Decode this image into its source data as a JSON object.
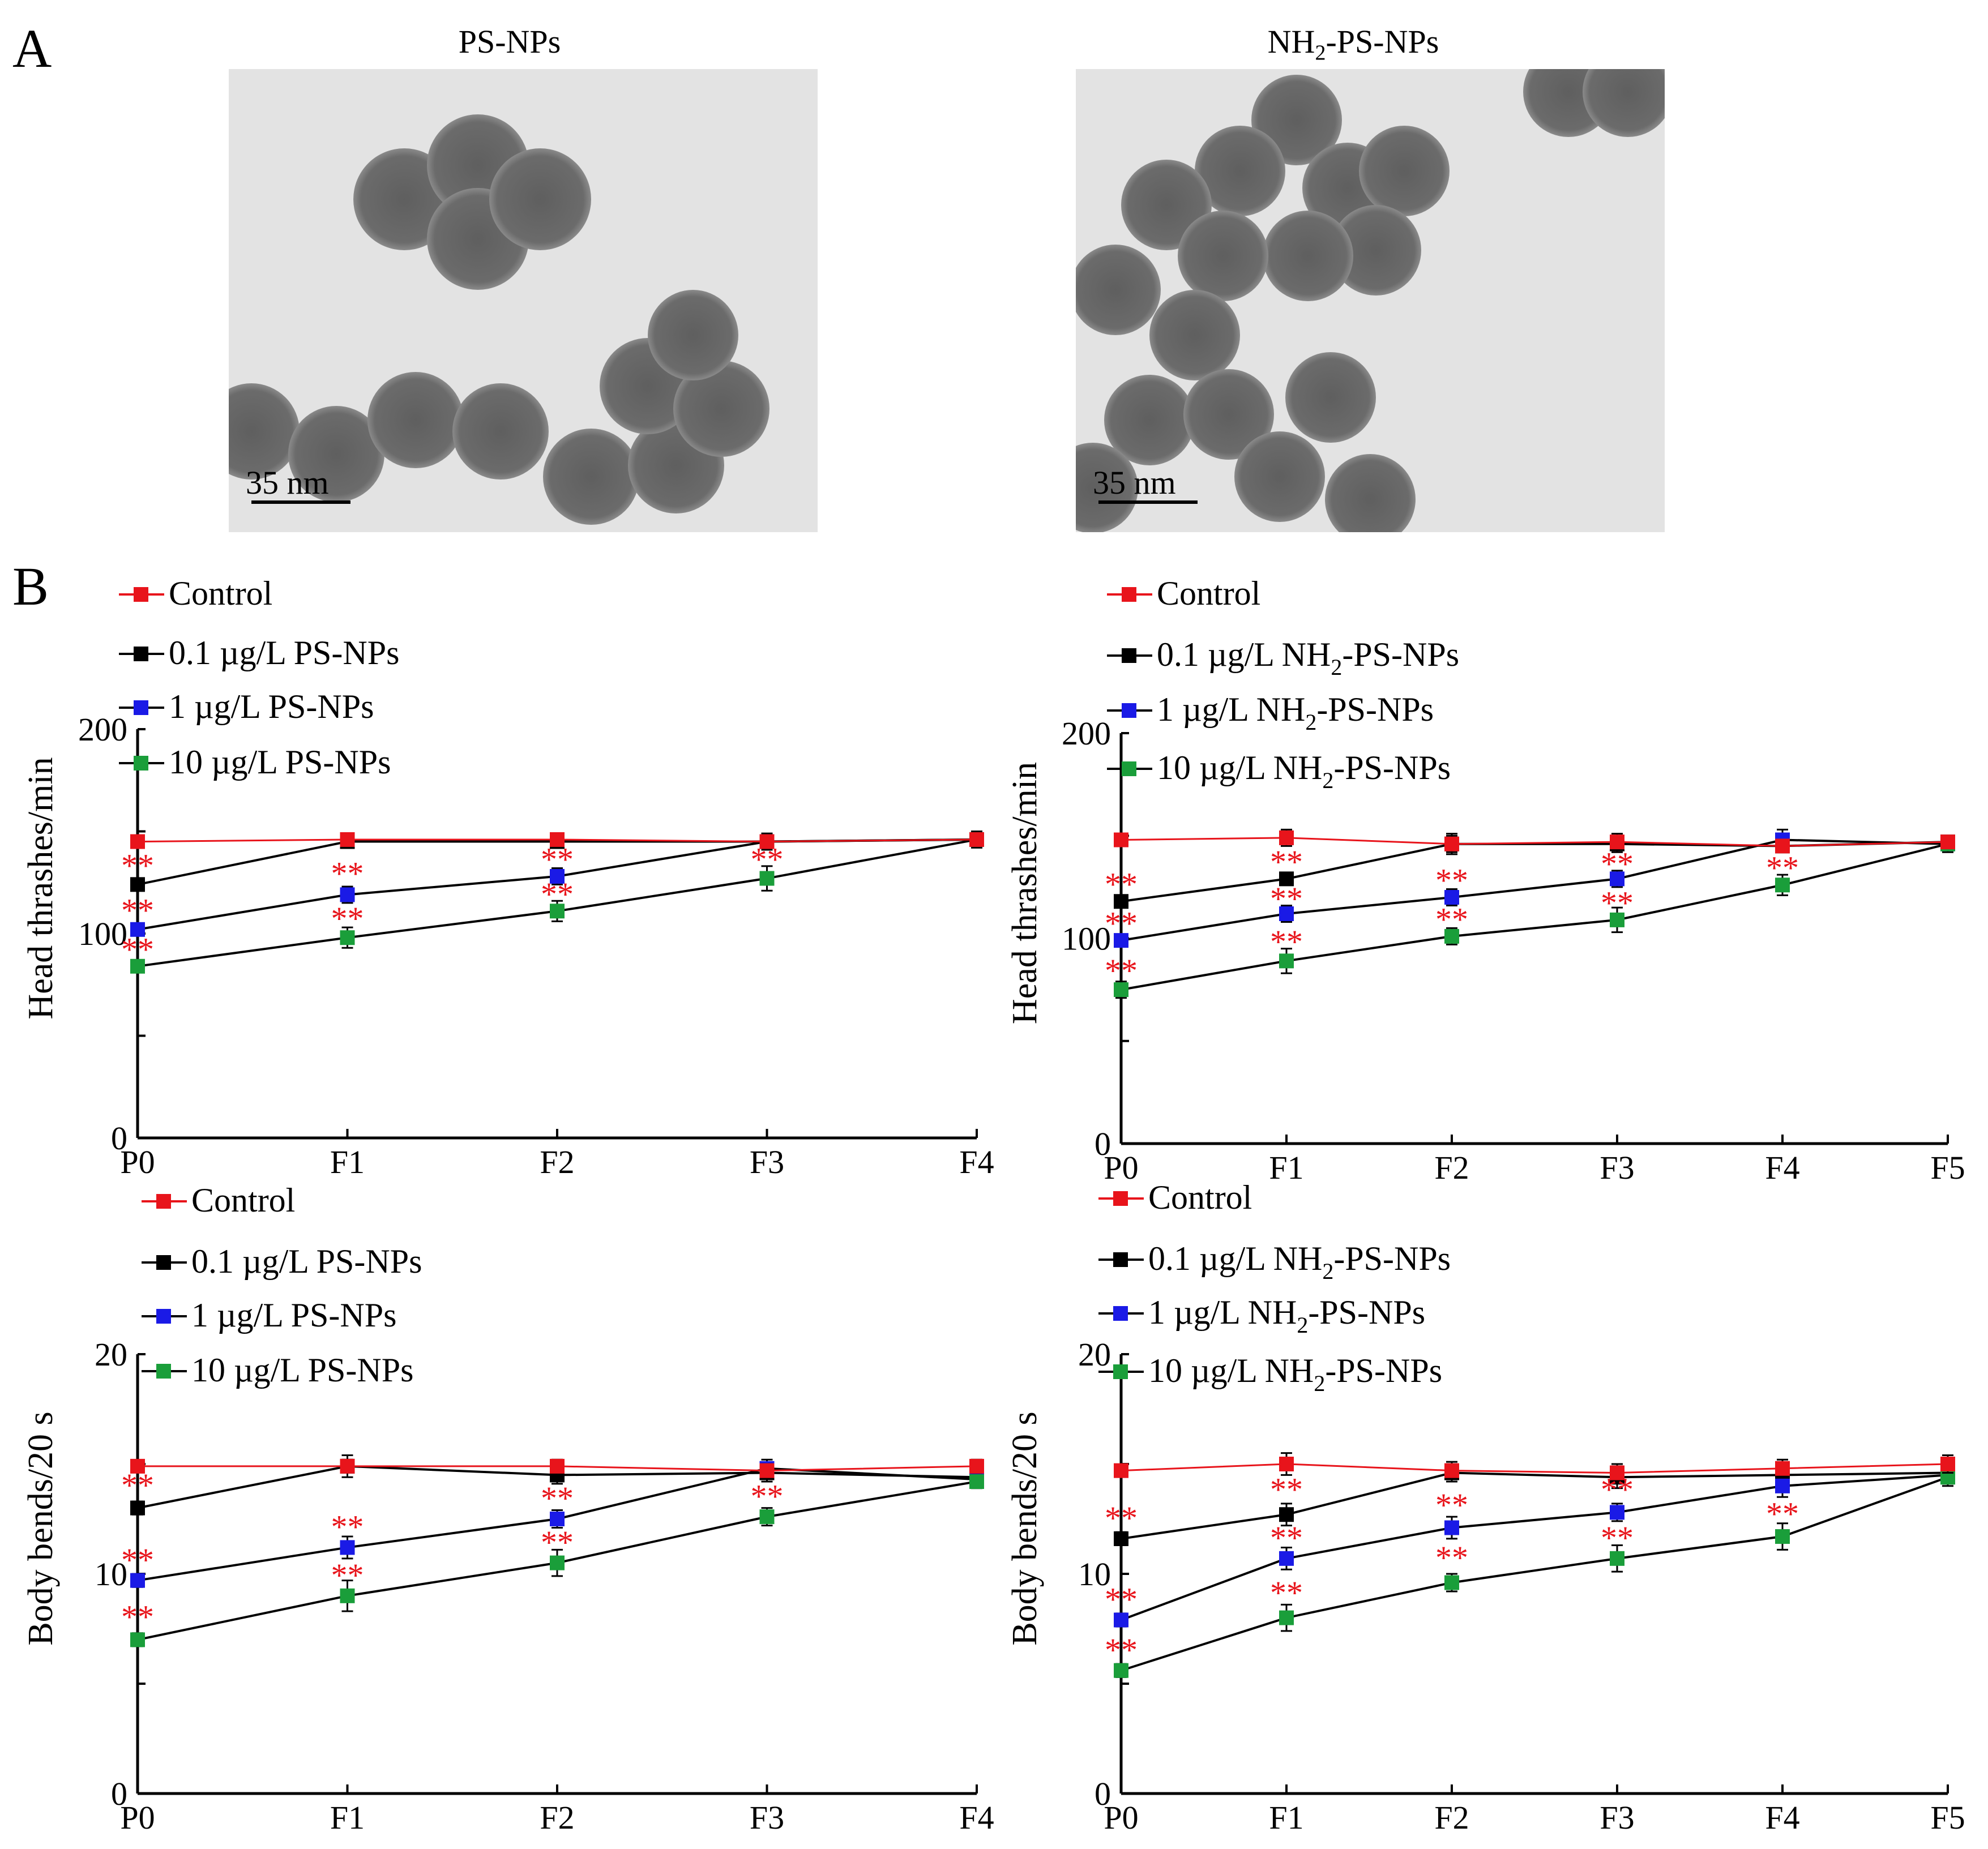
{
  "panel_labels": {
    "a": "A",
    "b": "B"
  },
  "tem": [
    {
      "title_main": "PS-NPs",
      "title_sub": "",
      "title_tail": "",
      "scalebar": "35 nm"
    },
    {
      "title_main": "NH",
      "title_sub": "2",
      "title_tail": "-PS-NPs",
      "scalebar": "35 nm"
    }
  ],
  "colors": {
    "control": "#e8141b",
    "low": "#000000",
    "mid": "#1a1ae6",
    "high": "#1a9e3a",
    "sig": "#e8141b"
  },
  "chart_data": [
    {
      "type": "line",
      "ylabel": "Head thrashes/min",
      "ylim": [
        0,
        200
      ],
      "yticks": [
        0,
        100,
        200
      ],
      "categories": [
        "P0",
        "F1",
        "F2",
        "F3",
        "F4"
      ],
      "series": [
        {
          "name": "Control",
          "label": "Control",
          "sub": "",
          "tail": "",
          "color": "#e8141b",
          "values": [
            145,
            146,
            146,
            145,
            146
          ],
          "err": [
            0,
            3,
            3,
            3,
            3
          ]
        },
        {
          "name": "0.1 µg/L PS-NPs",
          "label": "0.1 µg/L PS-NPs",
          "sub": "",
          "tail": "",
          "color": "#000000",
          "values": [
            124,
            145,
            145,
            145,
            146
          ],
          "err": [
            2,
            3,
            3,
            3,
            3
          ]
        },
        {
          "name": "1 µg/L PS-NPs",
          "label": "1 µg/L PS-NPs",
          "sub": "",
          "tail": "",
          "color": "#1a1ae6",
          "values": [
            102,
            119,
            128,
            145,
            146
          ],
          "err": [
            3,
            4,
            4,
            4,
            3
          ]
        },
        {
          "name": "10 µg/L PS-NPs",
          "label": "10 µg/L PS-NPs",
          "sub": "",
          "tail": "",
          "color": "#1a9e3a",
          "values": [
            84,
            98,
            111,
            127,
            146
          ],
          "err": [
            3,
            5,
            5,
            6,
            4
          ]
        }
      ],
      "annotations": [
        {
          "x": 0,
          "y": 134,
          "text": "**"
        },
        {
          "x": 0,
          "y": 112,
          "text": "**"
        },
        {
          "x": 0,
          "y": 93,
          "text": "**"
        },
        {
          "x": 1,
          "y": 130,
          "text": "**"
        },
        {
          "x": 1,
          "y": 108,
          "text": "**"
        },
        {
          "x": 2,
          "y": 137,
          "text": "**"
        },
        {
          "x": 2,
          "y": 120,
          "text": "**"
        },
        {
          "x": 3,
          "y": 137,
          "text": "**"
        }
      ]
    },
    {
      "type": "line",
      "ylabel": "Head thrashes/min",
      "ylim": [
        0,
        200
      ],
      "yticks": [
        0,
        100,
        200
      ],
      "categories": [
        "P0",
        "F1",
        "F2",
        "F3",
        "F4",
        "F5"
      ],
      "series": [
        {
          "name": "Control",
          "label": "Control",
          "sub": "",
          "tail": "",
          "color": "#e8141b",
          "values": [
            148,
            149,
            146,
            147,
            145,
            147
          ],
          "err": [
            0,
            4,
            4,
            4,
            3,
            3
          ]
        },
        {
          "name": "0.1 µg/L NH2-PS-NPs",
          "label": "0.1 µg/L NH",
          "sub": "2",
          "tail": "-PS-NPs",
          "color": "#000000",
          "values": [
            118,
            129,
            146,
            146,
            145,
            147
          ],
          "err": [
            3,
            3,
            5,
            4,
            3,
            3
          ]
        },
        {
          "name": "1 µg/L NH2-PS-NPs",
          "label": "1 µg/L NH",
          "sub": "2",
          "tail": "-PS-NPs",
          "color": "#1a1ae6",
          "values": [
            99,
            112,
            120,
            129,
            148,
            146
          ],
          "err": [
            3,
            4,
            4,
            4,
            5,
            3
          ]
        },
        {
          "name": "10 µg/L NH2-PS-NPs",
          "label": "10 µg/L NH",
          "sub": "2",
          "tail": "-PS-NPs",
          "color": "#1a9e3a",
          "values": [
            75,
            89,
            101,
            109,
            126,
            146
          ],
          "err": [
            4,
            6,
            4,
            6,
            5,
            4
          ]
        }
      ],
      "annotations": [
        {
          "x": 0,
          "y": 127,
          "text": "**"
        },
        {
          "x": 0,
          "y": 108,
          "text": "**"
        },
        {
          "x": 0,
          "y": 85,
          "text": "**"
        },
        {
          "x": 1,
          "y": 138,
          "text": "**"
        },
        {
          "x": 1,
          "y": 120,
          "text": "**"
        },
        {
          "x": 1,
          "y": 99,
          "text": "**"
        },
        {
          "x": 2,
          "y": 129,
          "text": "**"
        },
        {
          "x": 2,
          "y": 110,
          "text": "**"
        },
        {
          "x": 3,
          "y": 137,
          "text": "**"
        },
        {
          "x": 3,
          "y": 118,
          "text": "**"
        },
        {
          "x": 4,
          "y": 135,
          "text": "**"
        }
      ]
    },
    {
      "type": "line",
      "ylabel": "Body bends/20 s",
      "ylim": [
        0,
        20
      ],
      "yticks": [
        0,
        10,
        20
      ],
      "categories": [
        "P0",
        "F1",
        "F2",
        "F3",
        "F4"
      ],
      "series": [
        {
          "name": "Control",
          "label": "Control",
          "sub": "",
          "tail": "",
          "color": "#e8141b",
          "values": [
            14.9,
            14.9,
            14.9,
            14.7,
            14.9
          ],
          "err": [
            0,
            0.3,
            0.3,
            0.3,
            0.3
          ]
        },
        {
          "name": "0.1 µg/L PS-NPs",
          "label": "0.1 µg/L PS-NPs",
          "sub": "",
          "tail": "",
          "color": "#000000",
          "values": [
            13.0,
            14.9,
            14.5,
            14.6,
            14.4
          ],
          "err": [
            0.3,
            0.5,
            0.4,
            0.4,
            0.5
          ]
        },
        {
          "name": "1 µg/L PS-NPs",
          "label": "1 µg/L PS-NPs",
          "sub": "",
          "tail": "",
          "color": "#1a1ae6",
          "values": [
            9.7,
            11.2,
            12.5,
            14.8,
            14.3
          ],
          "err": [
            0.3,
            0.5,
            0.4,
            0.4,
            0.3
          ]
        },
        {
          "name": "10 µg/L PS-NPs",
          "label": "10 µg/L PS-NPs",
          "sub": "",
          "tail": "",
          "color": "#1a9e3a",
          "values": [
            7.0,
            9.0,
            10.5,
            12.6,
            14.2
          ],
          "err": [
            0.3,
            0.7,
            0.6,
            0.4,
            0.3
          ]
        }
      ],
      "annotations": [
        {
          "x": 0,
          "y": 14.1,
          "text": "**"
        },
        {
          "x": 0,
          "y": 10.7,
          "text": "**"
        },
        {
          "x": 0,
          "y": 8.1,
          "text": "**"
        },
        {
          "x": 1,
          "y": 12.2,
          "text": "**"
        },
        {
          "x": 1,
          "y": 10.0,
          "text": "**"
        },
        {
          "x": 2,
          "y": 13.5,
          "text": "**"
        },
        {
          "x": 2,
          "y": 11.5,
          "text": "**"
        },
        {
          "x": 3,
          "y": 13.6,
          "text": "**"
        }
      ]
    },
    {
      "type": "line",
      "ylabel": "Body bends/20 s",
      "ylim": [
        0,
        20
      ],
      "yticks": [
        0,
        10,
        20
      ],
      "categories": [
        "P0",
        "F1",
        "F2",
        "F3",
        "F4",
        "F5"
      ],
      "series": [
        {
          "name": "Control",
          "label": "Control",
          "sub": "",
          "tail": "",
          "color": "#e8141b",
          "values": [
            14.7,
            15.0,
            14.7,
            14.6,
            14.8,
            15.0
          ],
          "err": [
            0,
            0.5,
            0.4,
            0.4,
            0.4,
            0.4
          ]
        },
        {
          "name": "0.1 µg/L NH2-PS-NPs",
          "label": "0.1 µg/L NH",
          "sub": "2",
          "tail": "-PS-NPs",
          "color": "#000000",
          "values": [
            11.6,
            12.7,
            14.6,
            14.4,
            14.5,
            14.6
          ],
          "err": [
            0.3,
            0.5,
            0.4,
            0.5,
            0.5,
            0.4
          ]
        },
        {
          "name": "1 µg/L NH2-PS-NPs",
          "label": "1 µg/L NH",
          "sub": "2",
          "tail": "-PS-NPs",
          "color": "#1a1ae6",
          "values": [
            7.9,
            10.7,
            12.1,
            12.8,
            14.0,
            14.5
          ],
          "err": [
            0.3,
            0.5,
            0.5,
            0.4,
            0.5,
            0.4
          ]
        },
        {
          "name": "10 µg/L NH2-PS-NPs",
          "label": "10 µg/L NH",
          "sub": "2",
          "tail": "-PS-NPs",
          "color": "#1a9e3a",
          "values": [
            5.6,
            8.0,
            9.6,
            10.7,
            11.7,
            14.4
          ],
          "err": [
            0.3,
            0.6,
            0.4,
            0.6,
            0.6,
            0.4
          ]
        }
      ],
      "annotations": [
        {
          "x": 0,
          "y": 12.6,
          "text": "**"
        },
        {
          "x": 0,
          "y": 8.9,
          "text": "**"
        },
        {
          "x": 0,
          "y": 6.6,
          "text": "**"
        },
        {
          "x": 1,
          "y": 13.9,
          "text": "**"
        },
        {
          "x": 1,
          "y": 11.7,
          "text": "**"
        },
        {
          "x": 1,
          "y": 9.2,
          "text": "**"
        },
        {
          "x": 2,
          "y": 13.2,
          "text": "**"
        },
        {
          "x": 2,
          "y": 10.8,
          "text": "**"
        },
        {
          "x": 3,
          "y": 13.9,
          "text": "**"
        },
        {
          "x": 3,
          "y": 11.7,
          "text": "**"
        },
        {
          "x": 4,
          "y": 12.8,
          "text": "**"
        }
      ]
    }
  ]
}
